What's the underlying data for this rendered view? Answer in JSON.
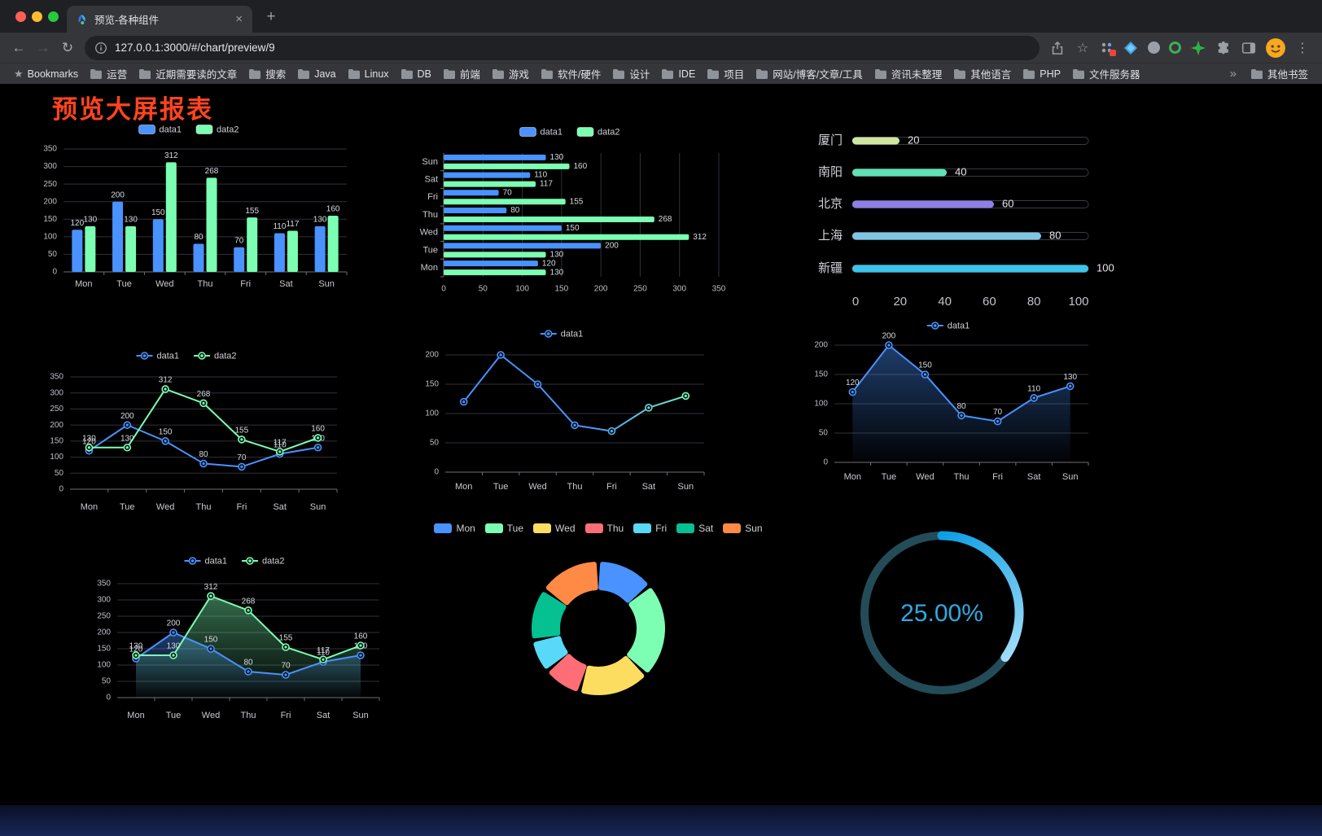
{
  "icons": {
    "close": "×",
    "new_tab": "+",
    "back": "←",
    "forward": "→",
    "reload": "↻",
    "kebab": "⋮",
    "overflow": "»",
    "bookmark_star": "☆",
    "bookmarks_star": "★"
  },
  "browser": {
    "tab_title": "预览-各种组件",
    "url": "127.0.0.1:3000/#/chart/preview/9",
    "bookmarks_bar": {
      "label": "Bookmarks",
      "folders": [
        "运营",
        "近期需要读的文章",
        "搜索",
        "Java",
        "Linux",
        "DB",
        "前端",
        "游戏",
        "软件/硬件",
        "设计",
        "IDE",
        "项目",
        "网站/博客/文章/工具",
        "资讯未整理",
        "其他语言",
        "PHP",
        "文件服务器"
      ],
      "other_bookmarks": "其他书签"
    }
  },
  "page": {
    "title": "预览大屏报表",
    "title_color": "#fe4420",
    "background": "#000000"
  },
  "palette": {
    "data1": "#4992ff",
    "data2": "#7cffb2"
  },
  "chart_data": [
    {
      "id": "bar-grouped",
      "type": "bar",
      "categories": [
        "Mon",
        "Tue",
        "Wed",
        "Thu",
        "Fri",
        "Sat",
        "Sun"
      ],
      "series": [
        {
          "name": "data1",
          "color": "#4992ff",
          "values": [
            120,
            200,
            150,
            80,
            70,
            110,
            130
          ]
        },
        {
          "name": "data2",
          "color": "#7cffb2",
          "values": [
            130,
            130,
            312,
            268,
            155,
            117,
            160
          ]
        }
      ],
      "ylim": [
        0,
        350
      ],
      "yticks": [
        0,
        50,
        100,
        150,
        200,
        250,
        300,
        350
      ],
      "labels": true,
      "grid": true,
      "legend_position": "top"
    },
    {
      "id": "bar-horizontal",
      "type": "bar-horizontal",
      "categories": [
        "Sun",
        "Sat",
        "Fri",
        "Thu",
        "Wed",
        "Tue",
        "Mon"
      ],
      "series": [
        {
          "name": "data1",
          "color": "#4992ff",
          "values": [
            130,
            110,
            70,
            80,
            150,
            200,
            120
          ]
        },
        {
          "name": "data2",
          "color": "#7cffb2",
          "values": [
            160,
            117,
            155,
            268,
            312,
            130,
            130
          ]
        }
      ],
      "xlim": [
        0,
        350
      ],
      "xticks": [
        0,
        50,
        100,
        150,
        200,
        250,
        300,
        350
      ],
      "labels": true,
      "grid": true,
      "legend_position": "top"
    },
    {
      "id": "progress-bars",
      "type": "bar-progress",
      "rows": [
        {
          "label": "厦门",
          "value": 20,
          "color": "#cfe6a2"
        },
        {
          "label": "南阳",
          "value": 40,
          "color": "#62e1b5"
        },
        {
          "label": "北京",
          "value": 60,
          "color": "#8d7fe3"
        },
        {
          "label": "上海",
          "value": 80,
          "color": "#7fc6e4"
        },
        {
          "label": "新疆",
          "value": 100,
          "color": "#3cc5e8"
        }
      ],
      "xlim": [
        0,
        100
      ],
      "xticks": [
        0,
        20,
        40,
        60,
        80,
        100
      ]
    },
    {
      "id": "line-dual",
      "type": "line",
      "categories": [
        "Mon",
        "Tue",
        "Wed",
        "Thu",
        "Fri",
        "Sat",
        "Sun"
      ],
      "series": [
        {
          "name": "data1",
          "color": "#4992ff",
          "values": [
            120,
            200,
            150,
            80,
            70,
            110,
            130
          ]
        },
        {
          "name": "data2",
          "color": "#7cffb2",
          "values": [
            130,
            130,
            312,
            268,
            155,
            117,
            160
          ]
        }
      ],
      "ylim": [
        0,
        350
      ],
      "yticks": [
        0,
        50,
        100,
        150,
        200,
        250,
        300,
        350
      ],
      "labels": true,
      "grid": true,
      "legend_position": "top"
    },
    {
      "id": "line-gradient",
      "type": "line",
      "categories": [
        "Mon",
        "Tue",
        "Wed",
        "Thu",
        "Fri",
        "Sat",
        "Sun"
      ],
      "series": [
        {
          "name": "data1",
          "gradient": [
            "#4992ff",
            "#7cffb2"
          ],
          "values": [
            120,
            200,
            150,
            80,
            70,
            110,
            130
          ]
        }
      ],
      "ylim": [
        0,
        200
      ],
      "yticks": [
        0,
        50,
        100,
        150,
        200
      ],
      "labels": false,
      "grid": true,
      "legend_position": "top"
    },
    {
      "id": "area-single",
      "type": "line",
      "categories": [
        "Mon",
        "Tue",
        "Wed",
        "Thu",
        "Fri",
        "Sat",
        "Sun"
      ],
      "series": [
        {
          "name": "data1",
          "color": "#4992ff",
          "area": true,
          "values": [
            120,
            200,
            150,
            80,
            70,
            110,
            130
          ]
        }
      ],
      "ylim": [
        0,
        200
      ],
      "yticks": [
        0,
        50,
        100,
        150,
        200
      ],
      "labels": true,
      "grid": true,
      "legend_position": "top"
    },
    {
      "id": "line-dual-area",
      "type": "line",
      "categories": [
        "Mon",
        "Tue",
        "Wed",
        "Thu",
        "Fri",
        "Sat",
        "Sun"
      ],
      "series": [
        {
          "name": "data1",
          "color": "#4992ff",
          "area": true,
          "values": [
            120,
            200,
            150,
            80,
            70,
            110,
            130
          ]
        },
        {
          "name": "data2",
          "color": "#7cffb2",
          "area": true,
          "values": [
            130,
            130,
            312,
            268,
            155,
            117,
            160
          ]
        }
      ],
      "ylim": [
        0,
        350
      ],
      "yticks": [
        0,
        50,
        100,
        150,
        200,
        250,
        300,
        350
      ],
      "labels": true,
      "grid": true,
      "legend_position": "top"
    },
    {
      "id": "donut",
      "type": "pie",
      "legend": [
        "Mon",
        "Tue",
        "Wed",
        "Thu",
        "Fri",
        "Sat",
        "Sun"
      ],
      "values": [
        120,
        200,
        150,
        80,
        70,
        110,
        130
      ],
      "colors": [
        "#4992ff",
        "#7cffb2",
        "#fddd60",
        "#ff6e76",
        "#58d9f9",
        "#05c091",
        "#ff8a45"
      ],
      "legend_position": "top",
      "inner_radius_ratio": 0.57
    },
    {
      "id": "gauge",
      "type": "gauge",
      "value": 25,
      "display": "25.00%",
      "color": "#2fa9e2",
      "track_color": "#234c58"
    }
  ]
}
